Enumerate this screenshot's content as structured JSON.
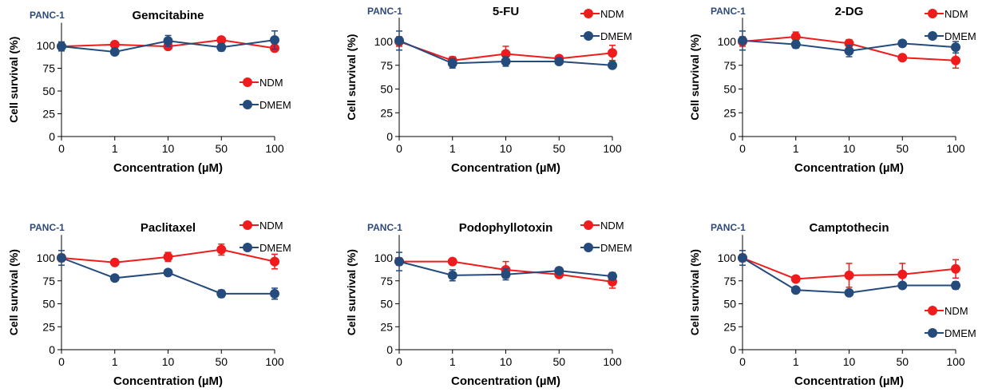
{
  "colors": {
    "NDM": "#EE1C1C",
    "DMEM": "#254B7C",
    "tag": "#2E4A7A"
  },
  "chart_data": [
    {
      "type": "line",
      "tag": "PANC-1",
      "title": "Gemcitabine",
      "xlabel": "Concentration (µM)",
      "ylabel": "Cell survival (%)",
      "categories": [
        "0",
        "1",
        "10",
        "50",
        "100"
      ],
      "ylim": [
        0,
        125
      ],
      "yticks": [
        "0",
        "25",
        "50",
        "75",
        "100"
      ],
      "legend_position": "right",
      "series": [
        {
          "name": "NDM",
          "values": [
            99,
            101,
            99,
            106,
            97
          ],
          "errors": [
            2,
            2,
            2,
            2,
            3
          ]
        },
        {
          "name": "DMEM",
          "values": [
            99,
            93,
            105,
            98,
            106
          ],
          "errors": [
            5,
            2,
            6,
            4,
            10
          ]
        }
      ]
    },
    {
      "type": "line",
      "tag": "PANC-1",
      "title": "5-FU",
      "xlabel": "Concentration (µM)",
      "ylabel": "Cell survival (%)",
      "categories": [
        "0",
        "1",
        "10",
        "50",
        "100"
      ],
      "ylim": [
        0,
        125
      ],
      "yticks": [
        "0",
        "25",
        "50",
        "75",
        "100"
      ],
      "legend_position": "top-right",
      "series": [
        {
          "name": "NDM",
          "values": [
            100,
            80,
            87,
            82,
            88
          ],
          "errors": [
            5,
            4,
            8,
            3,
            8
          ]
        },
        {
          "name": "DMEM",
          "values": [
            101,
            77,
            79,
            79,
            75
          ],
          "errors": [
            10,
            5,
            5,
            3,
            3
          ]
        }
      ]
    },
    {
      "type": "line",
      "tag": "PANC-1",
      "title": "2-DG",
      "xlabel": "Concentration (µM)",
      "ylabel": "Cell survival (%)",
      "categories": [
        "0",
        "1",
        "10",
        "50",
        "100"
      ],
      "ylim": [
        0,
        125
      ],
      "yticks": [
        "0",
        "25",
        "50",
        "75",
        "100"
      ],
      "legend_position": "top-right",
      "series": [
        {
          "name": "NDM",
          "values": [
            100,
            105,
            98,
            83,
            80
          ],
          "errors": [
            5,
            5,
            4,
            3,
            8
          ]
        },
        {
          "name": "DMEM",
          "values": [
            101,
            97,
            90,
            98,
            94
          ],
          "errors": [
            10,
            4,
            6,
            3,
            6
          ]
        }
      ]
    },
    {
      "type": "line",
      "tag": "PANC-1",
      "title": "Paclitaxel",
      "xlabel": "Concentration (µM)",
      "ylabel": "Cell survival (%)",
      "categories": [
        "0",
        "1",
        "10",
        "50",
        "100"
      ],
      "ylim": [
        0,
        125
      ],
      "yticks": [
        "0",
        "25",
        "50",
        "75",
        "100"
      ],
      "legend_position": "top-right",
      "series": [
        {
          "name": "NDM",
          "values": [
            100,
            95,
            101,
            109,
            96
          ],
          "errors": [
            4,
            3,
            5,
            6,
            8
          ]
        },
        {
          "name": "DMEM",
          "values": [
            100,
            78,
            84,
            61,
            61
          ],
          "errors": [
            8,
            2,
            3,
            4,
            6
          ]
        }
      ]
    },
    {
      "type": "line",
      "tag": "PANC-1",
      "title": "Podophyllotoxin",
      "xlabel": "Concentration (µM)",
      "ylabel": "Cell survival (%)",
      "categories": [
        "0",
        "1",
        "10",
        "50",
        "100"
      ],
      "ylim": [
        0,
        125
      ],
      "yticks": [
        "0",
        "25",
        "50",
        "75",
        "100"
      ],
      "legend_position": "top-right",
      "series": [
        {
          "name": "NDM",
          "values": [
            96,
            96,
            87,
            82,
            74
          ],
          "errors": [
            4,
            3,
            9,
            3,
            7
          ]
        },
        {
          "name": "DMEM",
          "values": [
            96,
            81,
            82,
            86,
            80
          ],
          "errors": [
            10,
            6,
            6,
            3,
            4
          ]
        }
      ]
    },
    {
      "type": "line",
      "tag": "PANC-1",
      "title": "Camptothecin",
      "xlabel": "Concentration (µM)",
      "ylabel": "Cell survival (%)",
      "categories": [
        "0",
        "1",
        "10",
        "50",
        "100"
      ],
      "ylim": [
        0,
        125
      ],
      "yticks": [
        "0",
        "25",
        "50",
        "75",
        "100"
      ],
      "legend_position": "right",
      "series": [
        {
          "name": "NDM",
          "values": [
            100,
            77,
            81,
            82,
            88
          ],
          "errors": [
            4,
            3,
            13,
            12,
            10
          ]
        },
        {
          "name": "DMEM",
          "values": [
            100,
            65,
            62,
            70,
            70
          ],
          "errors": [
            8,
            2,
            3,
            3,
            4
          ]
        }
      ]
    }
  ]
}
